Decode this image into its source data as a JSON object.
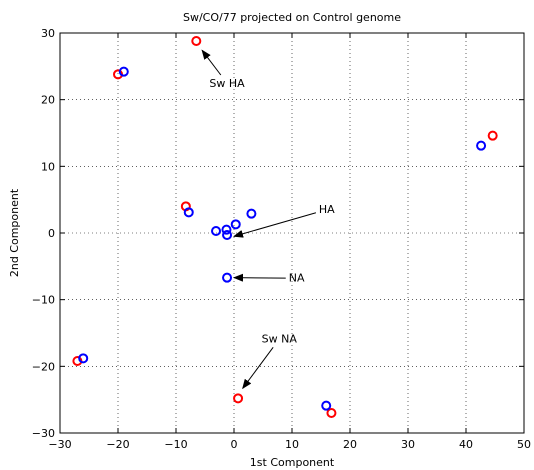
{
  "chart_data": {
    "type": "scatter",
    "title": "Sw/CO/77 projected on Control genome",
    "xlabel": "1st Component",
    "ylabel": "2nd Component",
    "xlim": [
      -30,
      50
    ],
    "ylim": [
      -30,
      30
    ],
    "xticks": [
      -30,
      -20,
      -10,
      0,
      10,
      20,
      30,
      40,
      50
    ],
    "yticks": [
      -30,
      -20,
      -10,
      0,
      10,
      20,
      30
    ],
    "grid": true,
    "series": [
      {
        "color": "#ff0000",
        "marker": "circle",
        "points": [
          [
            -6.5,
            28.8
          ],
          [
            -20,
            23.8
          ],
          [
            44.6,
            14.6
          ],
          [
            -8.3,
            4.0
          ],
          [
            -27,
            -19.2
          ],
          [
            0.7,
            -24.8
          ],
          [
            16.8,
            -27.0
          ]
        ]
      },
      {
        "color": "#0000ff",
        "marker": "circle",
        "points": [
          [
            -19,
            24.2
          ],
          [
            42.6,
            13.1
          ],
          [
            -7.8,
            3.1
          ],
          [
            3,
            2.9
          ],
          [
            0.3,
            1.3
          ],
          [
            -3.1,
            0.3
          ],
          [
            -1.3,
            0.5
          ],
          [
            -1.2,
            -0.3
          ],
          [
            -1.2,
            -6.7
          ],
          [
            -26,
            -18.8
          ],
          [
            15.9,
            -25.9
          ]
        ]
      }
    ],
    "annotations": [
      {
        "text": "Sw HA",
        "text_at": [
          -1.2,
          22.5
        ],
        "arrow_to": [
          -5.5,
          27.4
        ]
      },
      {
        "text": "HA",
        "text_at": [
          16,
          3.6
        ],
        "arrow_to": [
          0,
          -0.5
        ]
      },
      {
        "text": "NA",
        "text_at": [
          10.8,
          -6.7
        ],
        "arrow_to": [
          0,
          -6.7
        ]
      },
      {
        "text": "Sw NA",
        "text_at": [
          7.8,
          -15.8
        ],
        "arrow_to": [
          1.5,
          -23.3
        ]
      }
    ]
  }
}
